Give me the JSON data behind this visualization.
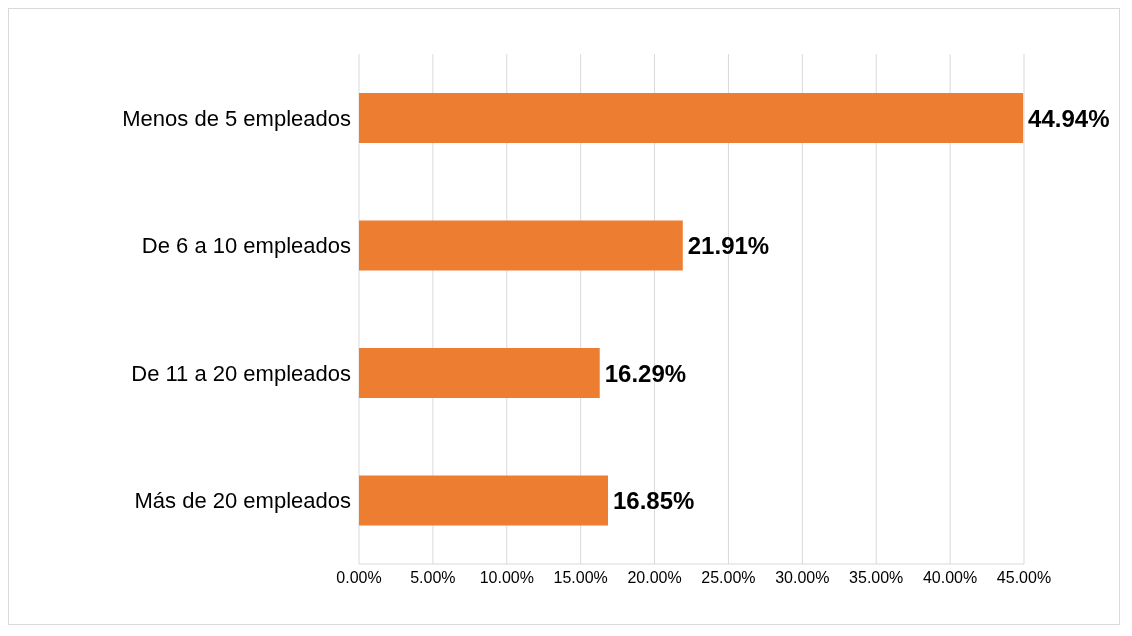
{
  "chart_data": {
    "type": "bar",
    "orientation": "horizontal",
    "categories": [
      "Menos de 5 empleados",
      "De 6 a 10 empleados",
      "De 11 a 20 empleados",
      "Más de 20 empleados"
    ],
    "values": [
      44.94,
      21.91,
      16.29,
      16.85
    ],
    "value_labels": [
      "44.94%",
      "21.91%",
      "16.29%",
      "16.85%"
    ],
    "color": "#ed7d31",
    "xlim": [
      0,
      45
    ],
    "xticks": [
      {
        "value": 0,
        "label": "0.00%"
      },
      {
        "value": 5,
        "label": "5.00%"
      },
      {
        "value": 10,
        "label": "10.00%"
      },
      {
        "value": 15,
        "label": "15.00%"
      },
      {
        "value": 20,
        "label": "20.00%"
      },
      {
        "value": 25,
        "label": "25.00%"
      },
      {
        "value": 30,
        "label": "30.00%"
      },
      {
        "value": 35,
        "label": "35.00%"
      },
      {
        "value": 40,
        "label": "40.00%"
      },
      {
        "value": 45,
        "label": "45.00%"
      }
    ],
    "grid": "x"
  }
}
